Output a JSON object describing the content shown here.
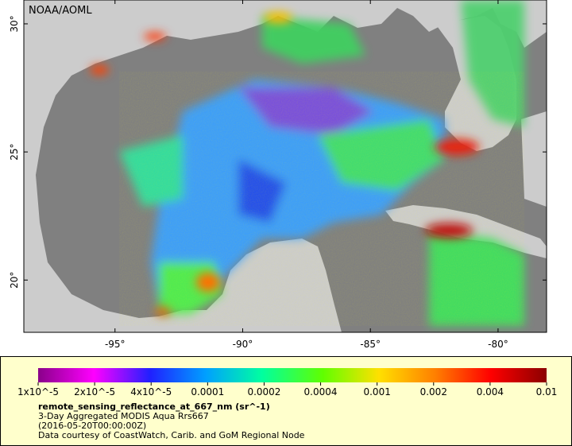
{
  "map": {
    "title": "NOAA/AOML",
    "xlim": [
      -98.57,
      -78.1
    ],
    "ylim": [
      17.96,
      30.93
    ],
    "lon_ticks": [
      {
        "value": -95,
        "label": "-95°"
      },
      {
        "value": -90,
        "label": "-90°"
      },
      {
        "value": -85,
        "label": "-85°"
      },
      {
        "value": -80,
        "label": "-80°"
      }
    ],
    "lat_ticks": [
      {
        "value": 30,
        "label": "30°"
      },
      {
        "value": 25,
        "label": "25°"
      },
      {
        "value": 20,
        "label": "20°"
      }
    ]
  },
  "colorbar": {
    "ticks": [
      {
        "value": 1e-05,
        "label": "1x10^-5"
      },
      {
        "value": 2e-05,
        "label": "2x10^-5"
      },
      {
        "value": 4e-05,
        "label": "4x10^-5"
      },
      {
        "value": 0.0001,
        "label": "0.0001"
      },
      {
        "value": 0.0002,
        "label": "0.0002"
      },
      {
        "value": 0.0004,
        "label": "0.0004"
      },
      {
        "value": 0.001,
        "label": "0.001"
      },
      {
        "value": 0.002,
        "label": "0.002"
      },
      {
        "value": 0.004,
        "label": "0.004"
      },
      {
        "value": 0.01,
        "label": "0.01"
      }
    ]
  },
  "legend": {
    "variable": "remote_sensing_reflectance_at_667_nm (sr^-1)",
    "dataset": "3-Day Aggregated MODIS Aqua Rrs667",
    "time": "(2016-05-20T00:00:00Z)",
    "credit": "Data courtesy of CoastWatch, Carib. and GoM Regional Node"
  }
}
